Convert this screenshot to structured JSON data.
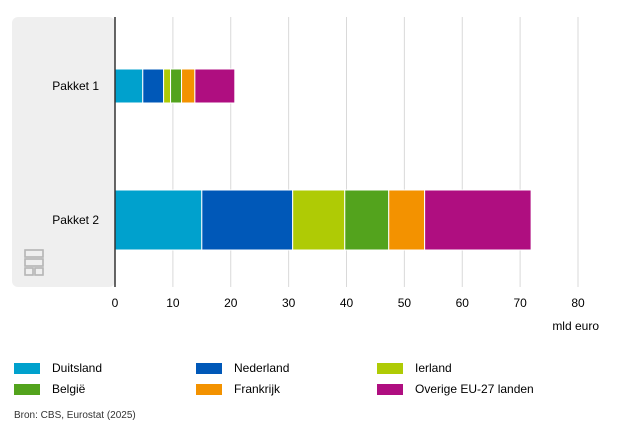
{
  "chart_data": {
    "type": "bar",
    "orientation": "horizontal",
    "stacked": true,
    "categories": [
      "Pakket 1",
      "Pakket 2"
    ],
    "series": [
      {
        "name": "Duitsland",
        "color": "#00a1cd",
        "values": [
          4.8,
          15.0
        ]
      },
      {
        "name": "Nederland",
        "color": "#0058b8",
        "values": [
          3.6,
          15.7
        ]
      },
      {
        "name": "Ierland",
        "color": "#afcb05",
        "values": [
          1.2,
          9.0
        ]
      },
      {
        "name": "België",
        "color": "#53a31d",
        "values": [
          1.9,
          7.6
        ]
      },
      {
        "name": "Frankrijk",
        "color": "#f39200",
        "values": [
          2.3,
          6.2
        ]
      },
      {
        "name": "Overige EU-27 landen",
        "color": "#af0e80",
        "values": [
          6.9,
          18.4
        ]
      }
    ],
    "xlim": [
      0,
      80
    ],
    "xticks": [
      0,
      10,
      20,
      30,
      40,
      50,
      60,
      70,
      80
    ],
    "xlabel": "mld euro",
    "grid": true,
    "legend_position": "bottom"
  },
  "source": "Bron: CBS, Eurostat (2025)",
  "logo": "cbs"
}
